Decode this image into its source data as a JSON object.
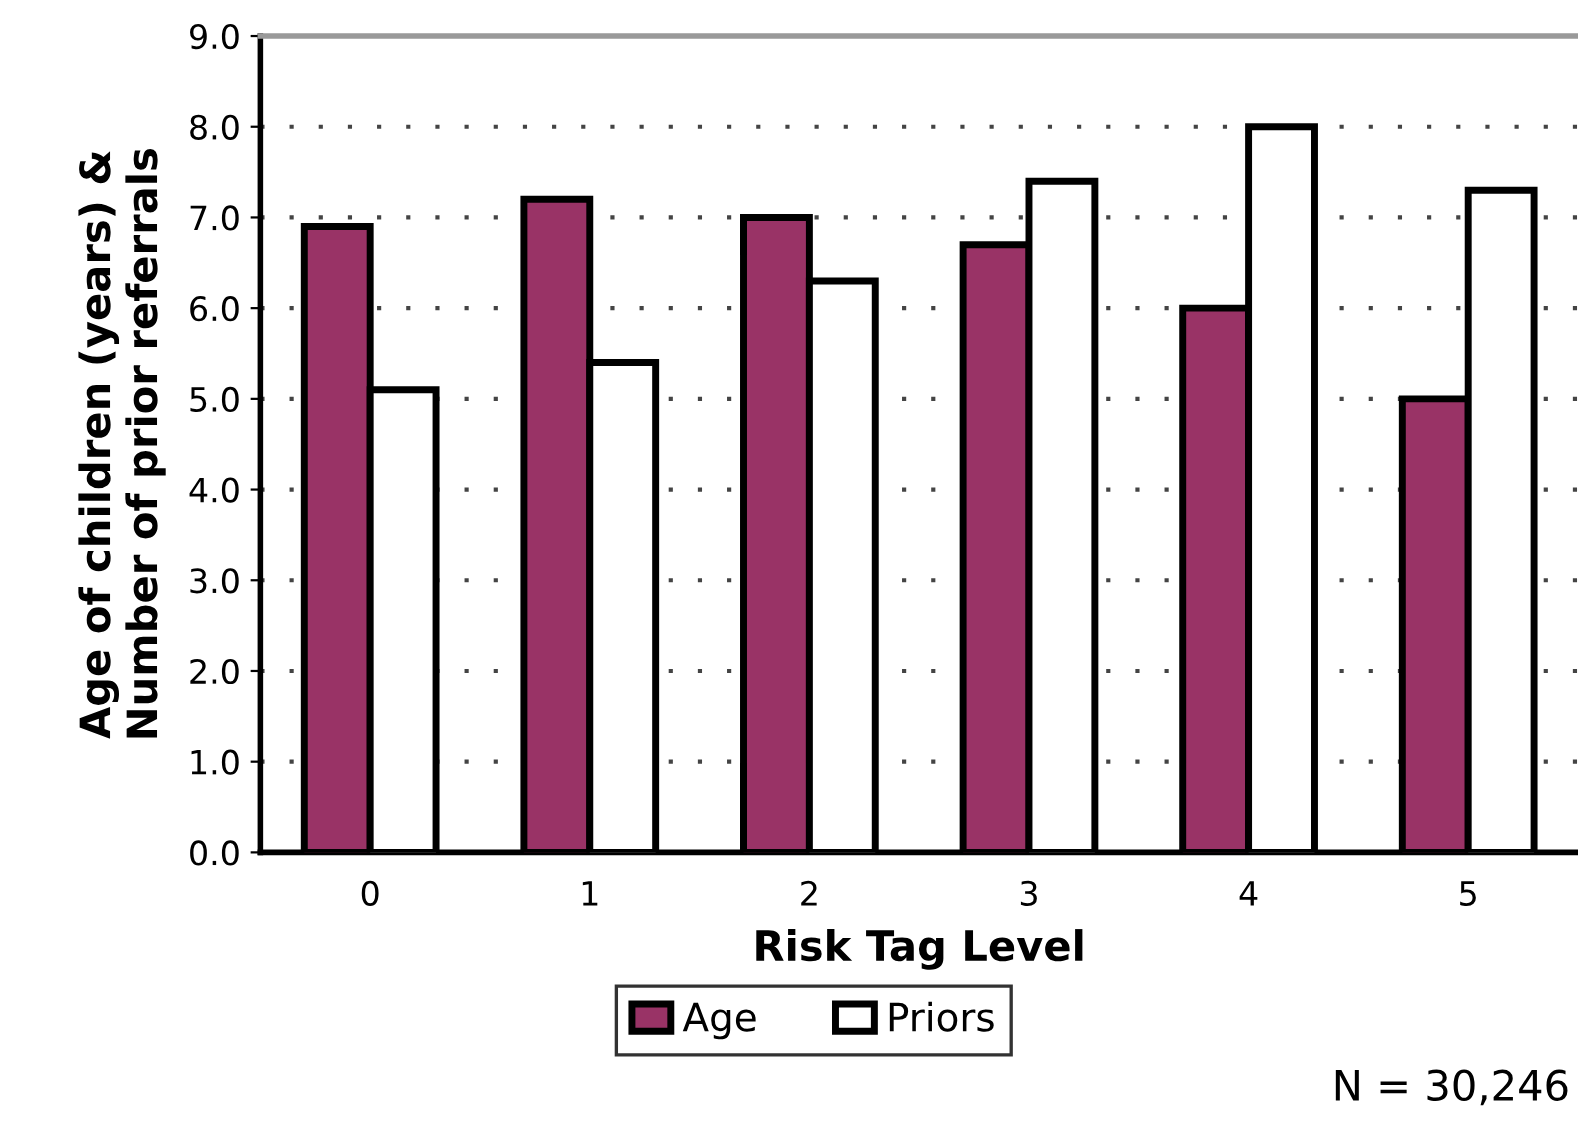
{
  "chart_data": {
    "type": "bar",
    "xlabel": "Risk Tag Level",
    "ylabel": "Age of children (years) &\nNumber of prior referrals",
    "categories": [
      "0",
      "1",
      "2",
      "3",
      "4",
      "5"
    ],
    "series": [
      {
        "name": "Age",
        "color": "#993366",
        "values": [
          6.9,
          7.2,
          7.0,
          6.7,
          6.0,
          5.0
        ]
      },
      {
        "name": "Priors",
        "color": "#ffffff",
        "values": [
          5.1,
          5.4,
          6.3,
          7.4,
          8.0,
          7.3
        ]
      }
    ],
    "ylim": [
      0,
      9
    ],
    "yticks": [
      {
        "value": 0,
        "label": "0.0"
      },
      {
        "value": 1,
        "label": "1.0"
      },
      {
        "value": 2,
        "label": "2.0"
      },
      {
        "value": 3,
        "label": "3.0"
      },
      {
        "value": 4,
        "label": "4.0"
      },
      {
        "value": 5,
        "label": "5.0"
      },
      {
        "value": 6,
        "label": "6.0"
      },
      {
        "value": 7,
        "label": "7.0"
      },
      {
        "value": 8,
        "label": "8.0"
      },
      {
        "value": 9,
        "label": "9.0"
      }
    ],
    "grid": "y",
    "legend": "bottom",
    "annotations": [
      "N = 30,246"
    ]
  }
}
